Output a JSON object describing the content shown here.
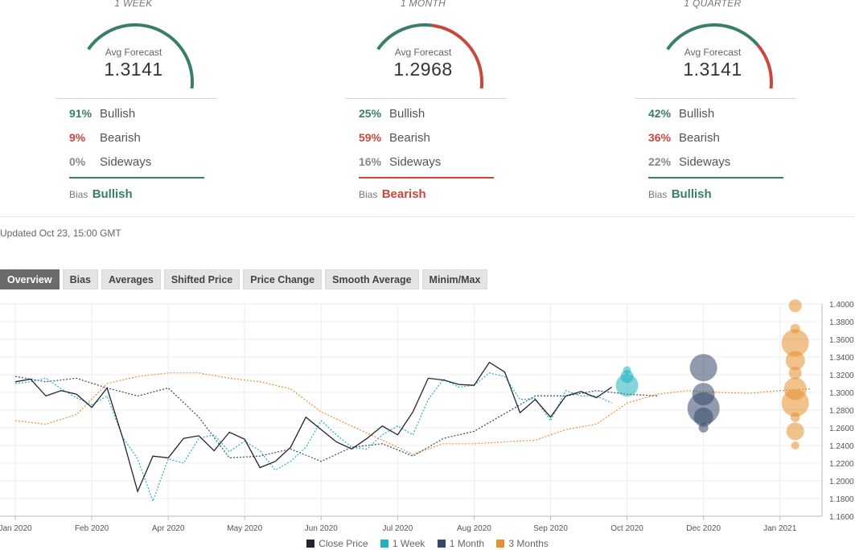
{
  "panels": [
    {
      "period": "1 WEEK",
      "gauge_label": "Avg Forecast",
      "avg_forecast": "1.3141",
      "gauge_split": {
        "bullish": 0.91,
        "bearish": 0.09,
        "sideways": 0.0
      },
      "rows": [
        {
          "pct": "91%",
          "label": "Bullish"
        },
        {
          "pct": "9%",
          "label": "Bearish"
        },
        {
          "pct": "0%",
          "label": "Sideways"
        }
      ],
      "bias_label": "Bias",
      "bias_value": "Bullish",
      "bias_color": "#3a7d6a"
    },
    {
      "period": "1 MONTH",
      "gauge_label": "Avg Forecast",
      "avg_forecast": "1.2968",
      "gauge_split": {
        "bullish": 0.25,
        "bearish": 0.59,
        "sideways": 0.16
      },
      "rows": [
        {
          "pct": "25%",
          "label": "Bullish"
        },
        {
          "pct": "59%",
          "label": "Bearish"
        },
        {
          "pct": "16%",
          "label": "Sideways"
        }
      ],
      "bias_label": "Bias",
      "bias_value": "Bearish",
      "bias_color": "#c9483b"
    },
    {
      "period": "1 QUARTER",
      "gauge_label": "Avg Forecast",
      "avg_forecast": "1.3141",
      "gauge_split": {
        "bullish": 0.42,
        "bearish": 0.36,
        "sideways": 0.22
      },
      "rows": [
        {
          "pct": "42%",
          "label": "Bullish"
        },
        {
          "pct": "36%",
          "label": "Bearish"
        },
        {
          "pct": "22%",
          "label": "Sideways"
        }
      ],
      "bias_label": "Bias",
      "bias_value": "Bullish",
      "bias_color": "#3a7d6a"
    }
  ],
  "colors": {
    "bullish": "#3a7d6a",
    "bearish": "#c9483b",
    "sideways": "#8a8a8a"
  },
  "updated": "Updated Oct 23, 15:00 GMT",
  "tabs": [
    "Overview",
    "Bias",
    "Averages",
    "Shifted Price",
    "Price Change",
    "Smooth Average",
    "Minim/Max"
  ],
  "active_tab": "Overview",
  "chart_data": {
    "type": "line",
    "x_ticks": [
      "Jan 2020",
      "Feb 2020",
      "Apr 2020",
      "May 2020",
      "Jun 2020",
      "Jul 2020",
      "Aug 2020",
      "Sep 2020",
      "Oct 2020",
      "Dec 2020",
      "Jan 2021"
    ],
    "y_ticks": [
      "1.1600",
      "1.1800",
      "1.2000",
      "1.2200",
      "1.2400",
      "1.2600",
      "1.2800",
      "1.3000",
      "1.3200",
      "1.3400",
      "1.3600",
      "1.3800",
      "1.4000"
    ],
    "ylim": [
      1.16,
      1.4
    ],
    "x_range": [
      -0.2,
      10.55
    ],
    "grid": true,
    "legend_position": "bottom",
    "series": [
      {
        "name": "Close Price",
        "color": "#23232f",
        "dash": false,
        "points": [
          [
            0.0,
            1.312
          ],
          [
            0.2,
            1.315
          ],
          [
            0.4,
            1.296
          ],
          [
            0.6,
            1.302
          ],
          [
            0.8,
            1.298
          ],
          [
            1.0,
            1.283
          ],
          [
            1.2,
            1.305
          ],
          [
            1.4,
            1.25
          ],
          [
            1.6,
            1.188
          ],
          [
            1.8,
            1.228
          ],
          [
            2.0,
            1.226
          ],
          [
            2.2,
            1.248
          ],
          [
            2.4,
            1.251
          ],
          [
            2.6,
            1.234
          ],
          [
            2.8,
            1.255
          ],
          [
            3.0,
            1.247
          ],
          [
            3.2,
            1.215
          ],
          [
            3.4,
            1.222
          ],
          [
            3.6,
            1.238
          ],
          [
            3.8,
            1.272
          ],
          [
            4.0,
            1.258
          ],
          [
            4.2,
            1.244
          ],
          [
            4.4,
            1.236
          ],
          [
            4.6,
            1.248
          ],
          [
            4.8,
            1.262
          ],
          [
            5.0,
            1.252
          ],
          [
            5.2,
            1.278
          ],
          [
            5.4,
            1.316
          ],
          [
            5.6,
            1.314
          ],
          [
            5.8,
            1.309
          ],
          [
            6.0,
            1.308
          ],
          [
            6.2,
            1.334
          ],
          [
            6.4,
            1.323
          ],
          [
            6.6,
            1.277
          ],
          [
            6.8,
            1.292
          ],
          [
            7.0,
            1.272
          ],
          [
            7.2,
            1.296
          ],
          [
            7.4,
            1.301
          ],
          [
            7.6,
            1.294
          ],
          [
            7.8,
            1.306
          ]
        ]
      },
      {
        "name": "1 Week",
        "color": "#1fb2c0",
        "dash": true,
        "points": [
          [
            0.0,
            1.31
          ],
          [
            0.2,
            1.312
          ],
          [
            0.4,
            1.316
          ],
          [
            0.6,
            1.304
          ],
          [
            0.8,
            1.294
          ],
          [
            1.0,
            1.286
          ],
          [
            1.2,
            1.296
          ],
          [
            1.4,
            1.25
          ],
          [
            1.6,
            1.225
          ],
          [
            1.8,
            1.177
          ],
          [
            2.0,
            1.225
          ],
          [
            2.2,
            1.22
          ],
          [
            2.4,
            1.248
          ],
          [
            2.6,
            1.252
          ],
          [
            2.8,
            1.233
          ],
          [
            3.0,
            1.245
          ],
          [
            3.2,
            1.234
          ],
          [
            3.4,
            1.212
          ],
          [
            3.6,
            1.222
          ],
          [
            3.8,
            1.238
          ],
          [
            4.0,
            1.268
          ],
          [
            4.2,
            1.252
          ],
          [
            4.4,
            1.238
          ],
          [
            4.6,
            1.236
          ],
          [
            4.8,
            1.252
          ],
          [
            5.0,
            1.262
          ],
          [
            5.2,
            1.252
          ],
          [
            5.4,
            1.292
          ],
          [
            5.6,
            1.315
          ],
          [
            5.8,
            1.306
          ],
          [
            6.0,
            1.308
          ],
          [
            6.2,
            1.322
          ],
          [
            6.4,
            1.318
          ],
          [
            6.6,
            1.292
          ],
          [
            6.8,
            1.293
          ],
          [
            7.0,
            1.268
          ],
          [
            7.2,
            1.302
          ],
          [
            7.4,
            1.296
          ],
          [
            7.6,
            1.296
          ],
          [
            7.8,
            1.288
          ]
        ]
      },
      {
        "name": "1 Month",
        "color": "#34486b",
        "dash": true,
        "points": [
          [
            0.0,
            1.318
          ],
          [
            0.4,
            1.312
          ],
          [
            0.8,
            1.316
          ],
          [
            1.2,
            1.305
          ],
          [
            1.6,
            1.296
          ],
          [
            2.0,
            1.305
          ],
          [
            2.4,
            1.272
          ],
          [
            2.8,
            1.226
          ],
          [
            3.2,
            1.228
          ],
          [
            3.6,
            1.236
          ],
          [
            4.0,
            1.222
          ],
          [
            4.4,
            1.238
          ],
          [
            4.8,
            1.242
          ],
          [
            5.2,
            1.228
          ],
          [
            5.6,
            1.248
          ],
          [
            6.0,
            1.256
          ],
          [
            6.4,
            1.276
          ],
          [
            6.8,
            1.296
          ],
          [
            7.2,
            1.296
          ],
          [
            7.6,
            1.302
          ],
          [
            8.0,
            1.298
          ],
          [
            8.4,
            1.296
          ]
        ]
      },
      {
        "name": "3 Months",
        "color": "#e8902f",
        "dash": true,
        "points": [
          [
            0.0,
            1.268
          ],
          [
            0.4,
            1.264
          ],
          [
            0.8,
            1.275
          ],
          [
            1.2,
            1.31
          ],
          [
            1.6,
            1.318
          ],
          [
            2.0,
            1.322
          ],
          [
            2.4,
            1.322
          ],
          [
            2.8,
            1.316
          ],
          [
            3.2,
            1.312
          ],
          [
            3.6,
            1.304
          ],
          [
            4.0,
            1.278
          ],
          [
            4.4,
            1.262
          ],
          [
            4.8,
            1.246
          ],
          [
            5.2,
            1.23
          ],
          [
            5.6,
            1.242
          ],
          [
            6.0,
            1.242
          ],
          [
            6.4,
            1.244
          ],
          [
            6.8,
            1.246
          ],
          [
            7.2,
            1.258
          ],
          [
            7.6,
            1.264
          ],
          [
            8.0,
            1.288
          ],
          [
            8.4,
            1.298
          ],
          [
            8.8,
            1.302
          ],
          [
            9.2,
            1.3
          ],
          [
            9.6,
            1.299
          ],
          [
            10.0,
            1.302
          ],
          [
            10.4,
            1.304
          ]
        ]
      }
    ],
    "forecast_bubbles": [
      {
        "series": "1 Week",
        "color": "#1fb2c0",
        "x": 8.0,
        "points": [
          [
            1.308,
            14
          ],
          [
            1.318,
            8
          ],
          [
            1.325,
            5
          ]
        ]
      },
      {
        "series": "1 Month",
        "color": "#34486b",
        "x": 9.0,
        "points": [
          [
            1.282,
            20
          ],
          [
            1.298,
            14
          ],
          [
            1.328,
            17
          ],
          [
            1.272,
            12
          ],
          [
            1.26,
            6
          ]
        ]
      },
      {
        "series": "3 Months",
        "color": "#e8902f",
        "x": 10.2,
        "points": [
          [
            1.398,
            8
          ],
          [
            1.372,
            6
          ],
          [
            1.356,
            17
          ],
          [
            1.336,
            12
          ],
          [
            1.322,
            8
          ],
          [
            1.304,
            14
          ],
          [
            1.288,
            17
          ],
          [
            1.272,
            6
          ],
          [
            1.256,
            11
          ],
          [
            1.24,
            5
          ]
        ]
      }
    ]
  }
}
